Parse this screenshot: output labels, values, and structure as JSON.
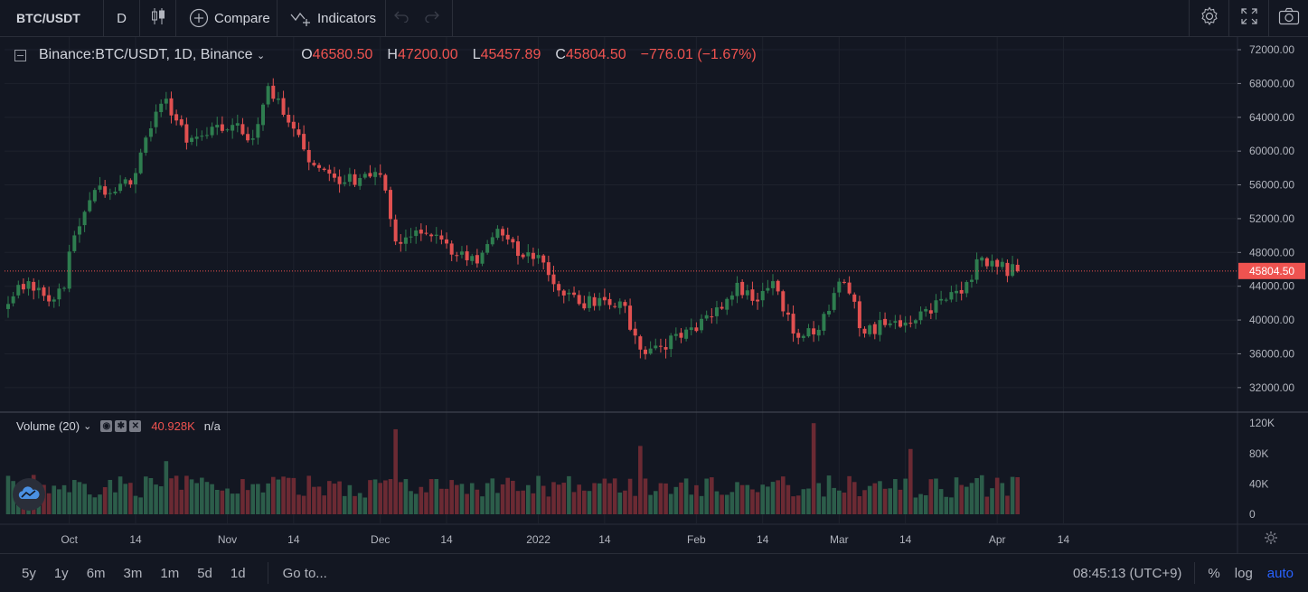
{
  "toolbar": {
    "symbol": "BTC/USDT",
    "interval": "D",
    "compare_label": "Compare",
    "indicators_label": "Indicators",
    "icons": [
      "candles-icon",
      "plus-circle-icon",
      "indicators-icon",
      "undo-icon",
      "redo-icon",
      "settings-icon",
      "fullscreen-icon",
      "camera-icon"
    ]
  },
  "legend": {
    "symbol": "Binance:BTC/USDT, 1D, Binance",
    "o_label": "O",
    "o_value": "46580.50",
    "h_label": "H",
    "h_value": "47200.00",
    "l_label": "L",
    "l_value": "45457.89",
    "c_label": "C",
    "c_value": "45804.50",
    "change": "−776.01 (−1.67%)"
  },
  "volume_legend": {
    "label": "Volume (20)",
    "value": "40.928K",
    "ma": "n/a"
  },
  "bottom": {
    "ranges": [
      "5y",
      "1y",
      "6m",
      "3m",
      "1m",
      "5d",
      "1d"
    ],
    "goto": "Go to...",
    "time": "08:45:13 (UTC+9)",
    "percent": "%",
    "log": "log",
    "auto": "auto"
  },
  "colors": {
    "up": "#26a69a",
    "down": "#ef5350",
    "up_candle": "#2e7d4f",
    "down_candle": "#e05050",
    "vol_up": "#2c5d4a",
    "vol_down": "#6b2a33",
    "background": "#131722",
    "grid": "#1e222d"
  },
  "chart_data": {
    "type": "candlestick",
    "title": "Binance:BTC/USDT, 1D, Binance",
    "y_ticks": [
      "72000.00",
      "68000.00",
      "64000.00",
      "60000.00",
      "56000.00",
      "52000.00",
      "48000.00",
      "44000.00",
      "40000.00",
      "36000.00",
      "32000.00"
    ],
    "ylim": [
      29200,
      73500
    ],
    "last_price": "45804.50",
    "x_ticks": [
      "Oct",
      "14",
      "Nov",
      "14",
      "Dec",
      "14",
      "2022",
      "14",
      "Feb",
      "14",
      "Mar",
      "14",
      "Apr",
      "14"
    ],
    "volume_ticks": [
      "120K",
      "80K",
      "40K",
      "0"
    ],
    "volume_ylim": [
      0,
      125000
    ],
    "anchor_closes": [
      [
        "2021-09-20",
        42800
      ],
      [
        "2021-09-23",
        44600
      ],
      [
        "2021-09-27",
        42200
      ],
      [
        "2021-09-30",
        43800
      ],
      [
        "2021-10-01",
        48100
      ],
      [
        "2021-10-06",
        55400
      ],
      [
        "2021-10-10",
        55200
      ],
      [
        "2021-10-14",
        57400
      ],
      [
        "2021-10-16",
        61600
      ],
      [
        "2021-10-20",
        66200
      ],
      [
        "2021-10-24",
        61000
      ],
      [
        "2021-10-28",
        61900
      ],
      [
        "2021-11-02",
        63100
      ],
      [
        "2021-11-06",
        61500
      ],
      [
        "2021-11-09",
        67700
      ],
      [
        "2021-11-12",
        64300
      ],
      [
        "2021-11-16",
        60200
      ],
      [
        "2021-11-19",
        58000
      ],
      [
        "2021-11-24",
        56300
      ],
      [
        "2021-11-28",
        57300
      ],
      [
        "2021-12-01",
        57200
      ],
      [
        "2021-12-04",
        49300
      ],
      [
        "2021-12-08",
        50600
      ],
      [
        "2021-12-12",
        50100
      ],
      [
        "2021-12-16",
        47600
      ],
      [
        "2021-12-20",
        46700
      ],
      [
        "2021-12-24",
        50800
      ],
      [
        "2021-12-28",
        47600
      ],
      [
        "2022-01-01",
        47700
      ],
      [
        "2022-01-05",
        43500
      ],
      [
        "2022-01-09",
        41900
      ],
      [
        "2022-01-13",
        42600
      ],
      [
        "2022-01-17",
        42200
      ],
      [
        "2022-01-21",
        36500
      ],
      [
        "2022-01-25",
        36900
      ],
      [
        "2022-01-29",
        37900
      ],
      [
        "2022-02-01",
        38700
      ],
      [
        "2022-02-05",
        41500
      ],
      [
        "2022-02-09",
        44400
      ],
      [
        "2022-02-13",
        42200
      ],
      [
        "2022-02-16",
        44600
      ],
      [
        "2022-02-20",
        38400
      ],
      [
        "2022-02-24",
        38300
      ],
      [
        "2022-02-28",
        43200
      ],
      [
        "2022-03-02",
        44400
      ],
      [
        "2022-03-06",
        38400
      ],
      [
        "2022-03-10",
        39400
      ],
      [
        "2022-03-14",
        39700
      ],
      [
        "2022-03-18",
        41300
      ],
      [
        "2022-03-22",
        42400
      ],
      [
        "2022-03-26",
        44500
      ],
      [
        "2022-03-29",
        47400
      ],
      [
        "2022-04-01",
        46300
      ],
      [
        "2022-04-05",
        45800
      ]
    ],
    "volume_highlights": [
      [
        "2021-10-20",
        70000
      ],
      [
        "2021-12-04",
        112000
      ],
      [
        "2022-01-21",
        90000
      ],
      [
        "2022-02-24",
        120000
      ],
      [
        "2022-03-15",
        86000
      ]
    ]
  }
}
